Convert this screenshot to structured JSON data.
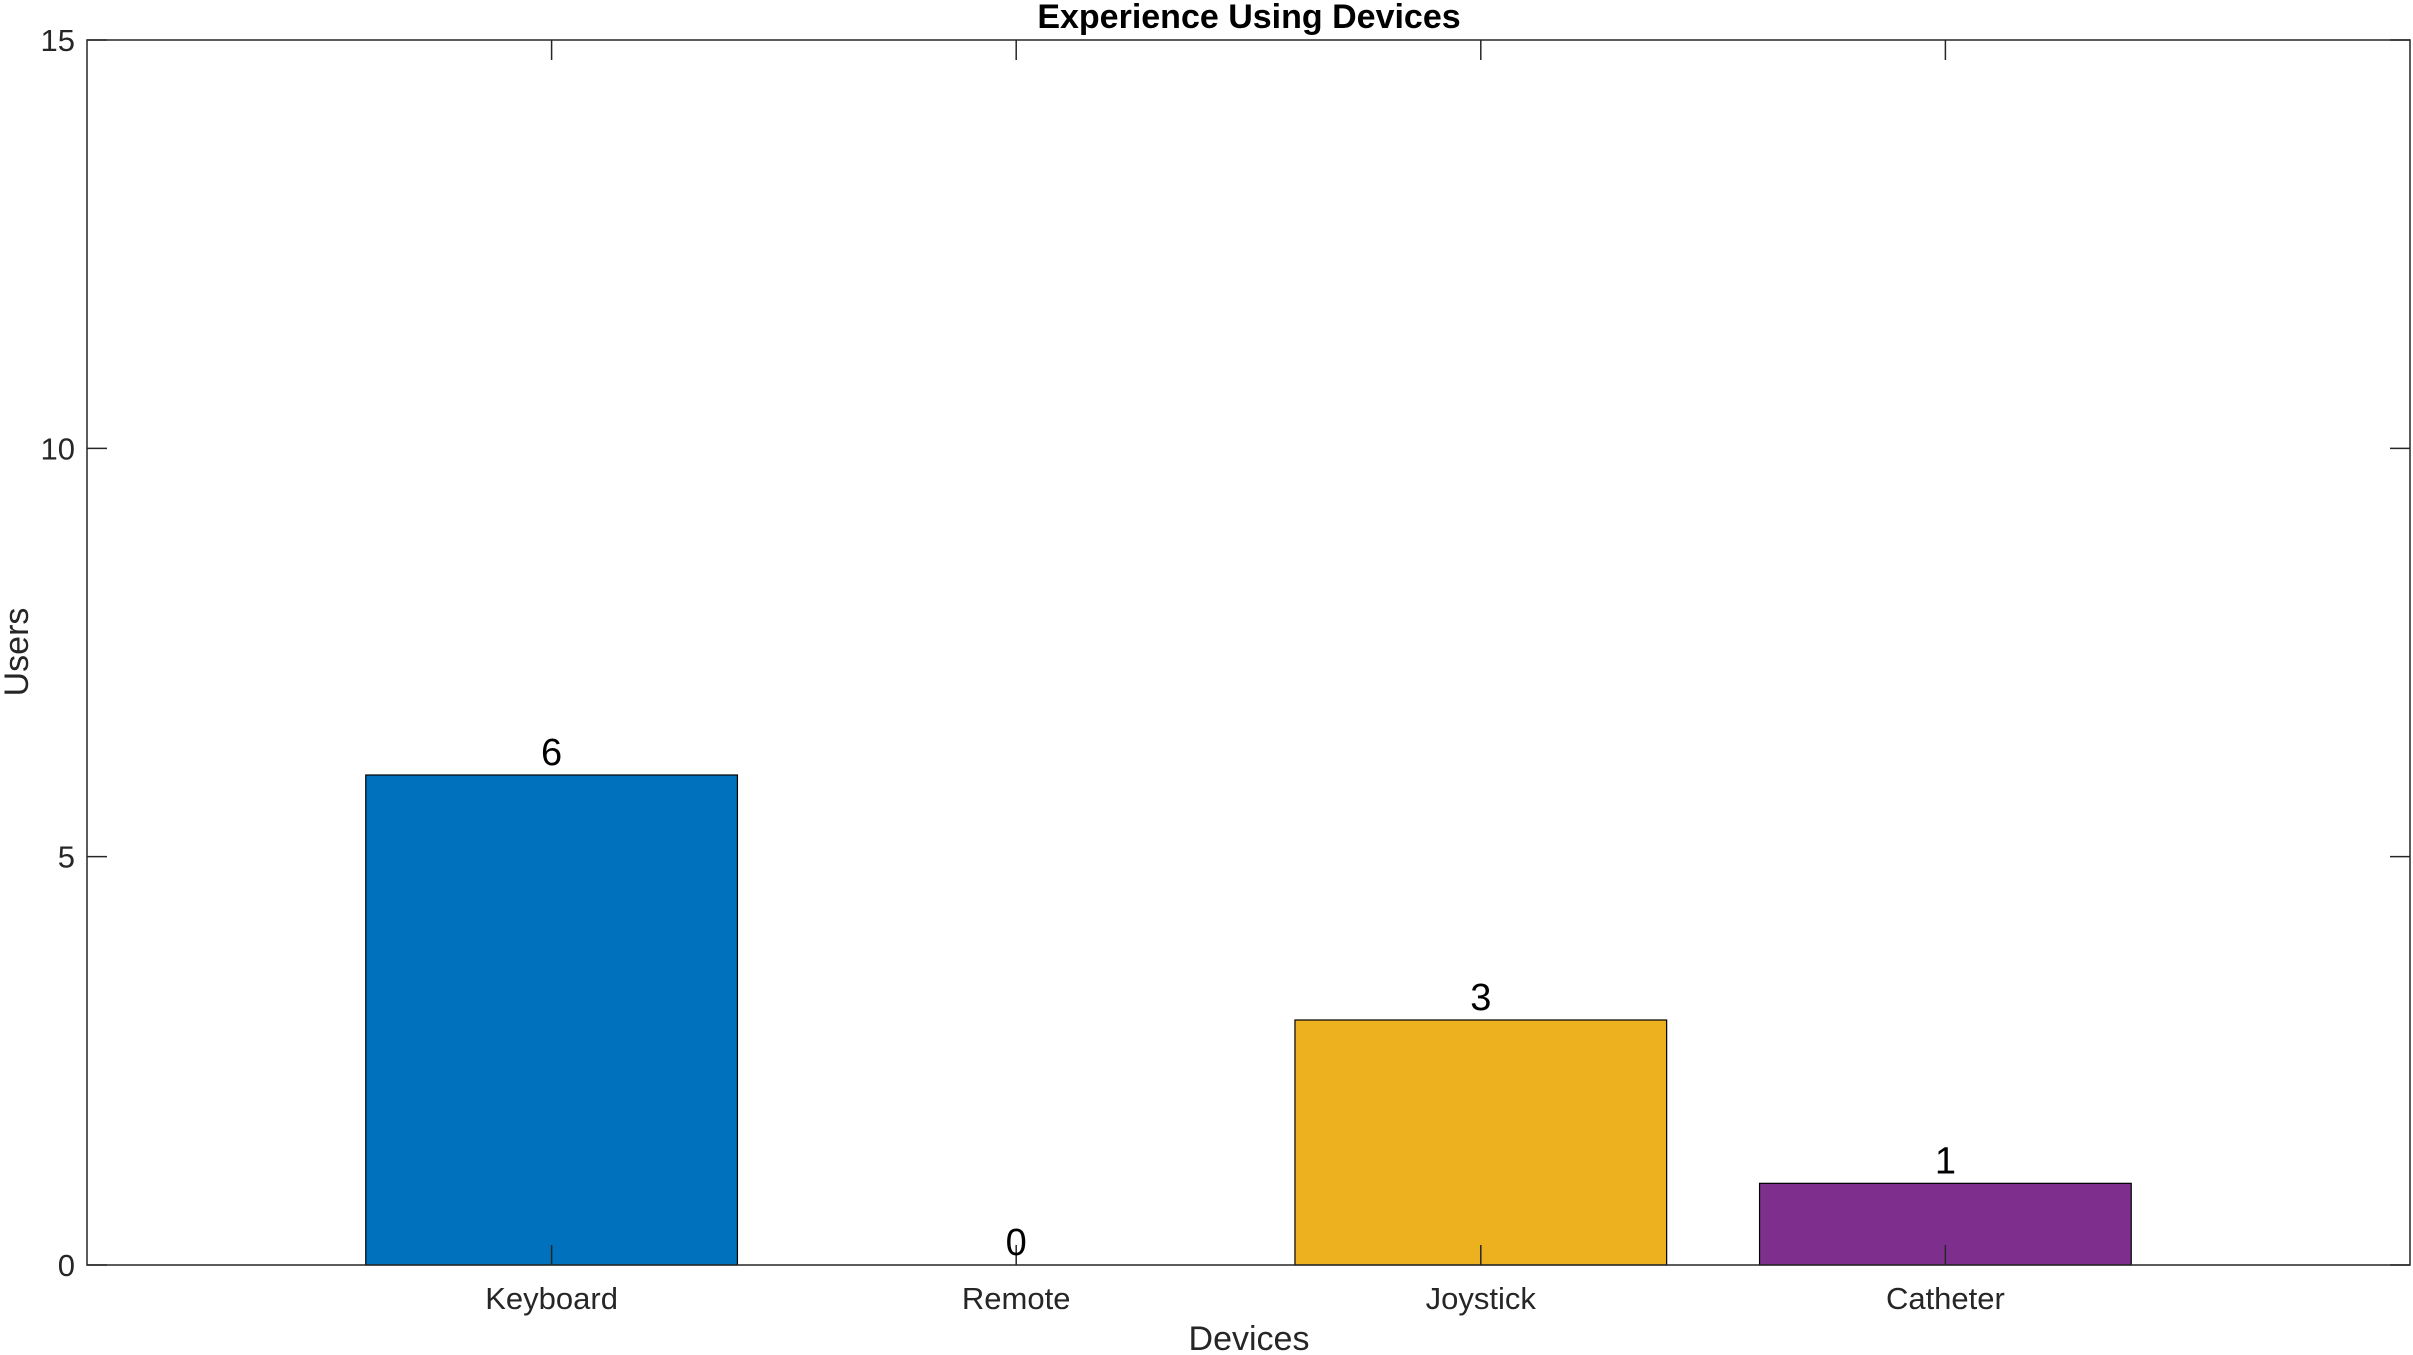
{
  "chart_data": {
    "type": "bar",
    "title": "Experience Using Devices",
    "xlabel": "Devices",
    "ylabel": "Users",
    "categories": [
      "Keyboard",
      "Remote",
      "Joystick",
      "Catheter"
    ],
    "values": [
      6,
      0,
      3,
      1
    ],
    "data_labels": [
      "6",
      "0",
      "3",
      "1"
    ],
    "colors": [
      "#0072BD",
      "#D95319",
      "#EDB120",
      "#7E2F8E"
    ],
    "ylim": [
      0,
      15
    ],
    "yticks": [
      0,
      5,
      10,
      15
    ],
    "ytick_labels": [
      "0",
      "5",
      "10",
      "15"
    ],
    "xlim": [
      0,
      5
    ],
    "grid": false,
    "legend": "none"
  }
}
